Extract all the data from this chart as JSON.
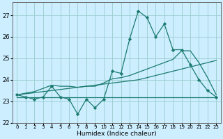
{
  "xlabel": "Humidex (Indice chaleur)",
  "background_color": "#cceeff",
  "grid_color": "#99cccc",
  "line_color": "#1a7a6e",
  "x": [
    0,
    1,
    2,
    3,
    4,
    5,
    6,
    7,
    8,
    9,
    10,
    11,
    12,
    13,
    14,
    15,
    16,
    17,
    18,
    19,
    20,
    21,
    22,
    23
  ],
  "y_main": [
    23.3,
    23.2,
    23.1,
    23.2,
    23.7,
    23.2,
    23.1,
    22.4,
    23.1,
    22.7,
    23.1,
    24.4,
    24.3,
    25.9,
    27.2,
    26.9,
    26.0,
    26.6,
    25.4,
    25.4,
    24.7,
    24.0,
    23.5,
    23.2
  ],
  "y_flat": [
    23.2,
    23.2,
    23.2,
    23.2,
    23.2,
    23.2,
    23.2,
    23.2,
    23.2,
    23.2,
    23.2,
    23.2,
    23.2,
    23.2,
    23.2,
    23.2,
    23.2,
    23.2,
    23.2,
    23.2,
    23.2,
    23.2,
    23.2,
    23.2
  ],
  "y_trend1": [
    23.3,
    23.35,
    23.4,
    23.45,
    23.5,
    23.55,
    23.6,
    23.65,
    23.7,
    23.75,
    23.8,
    23.85,
    23.9,
    23.95,
    24.0,
    24.1,
    24.2,
    24.3,
    24.4,
    24.5,
    24.6,
    24.7,
    24.8,
    24.9
  ],
  "y_trend2": [
    23.3,
    23.38,
    23.45,
    23.6,
    23.75,
    23.7,
    23.7,
    23.65,
    23.7,
    23.7,
    23.85,
    24.05,
    24.1,
    24.2,
    24.35,
    24.5,
    24.65,
    24.8,
    24.95,
    25.35,
    25.35,
    24.8,
    24.1,
    23.3
  ],
  "ylim": [
    22.0,
    27.6
  ],
  "yticks": [
    22,
    23,
    24,
    25,
    26,
    27
  ],
  "xlim": [
    -0.5,
    23.5
  ],
  "figsize": [
    3.2,
    2.0
  ],
  "dpi": 100
}
